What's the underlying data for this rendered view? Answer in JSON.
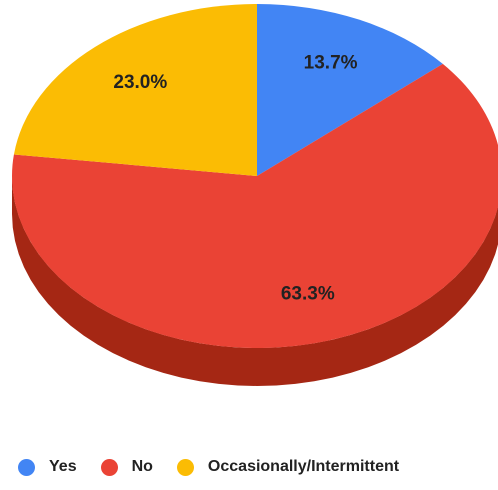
{
  "chart_data": {
    "type": "pie",
    "three_d": true,
    "title": "",
    "series": [
      {
        "name": "Yes",
        "value": 13.7,
        "label": "13.7%",
        "color": "#4285F4",
        "side_color": "#2f5fb0"
      },
      {
        "name": "No",
        "value": 63.3,
        "label": "63.3%",
        "color": "#EA4335",
        "side_color": "#A52714"
      },
      {
        "name": "Occasionally/Intermittent",
        "value": 23.0,
        "label": "23.0%",
        "color": "#FBBC04",
        "side_color": "#b58700"
      }
    ],
    "legend_position": "bottom",
    "start_angle_deg": 0,
    "direction": "clockwise"
  }
}
